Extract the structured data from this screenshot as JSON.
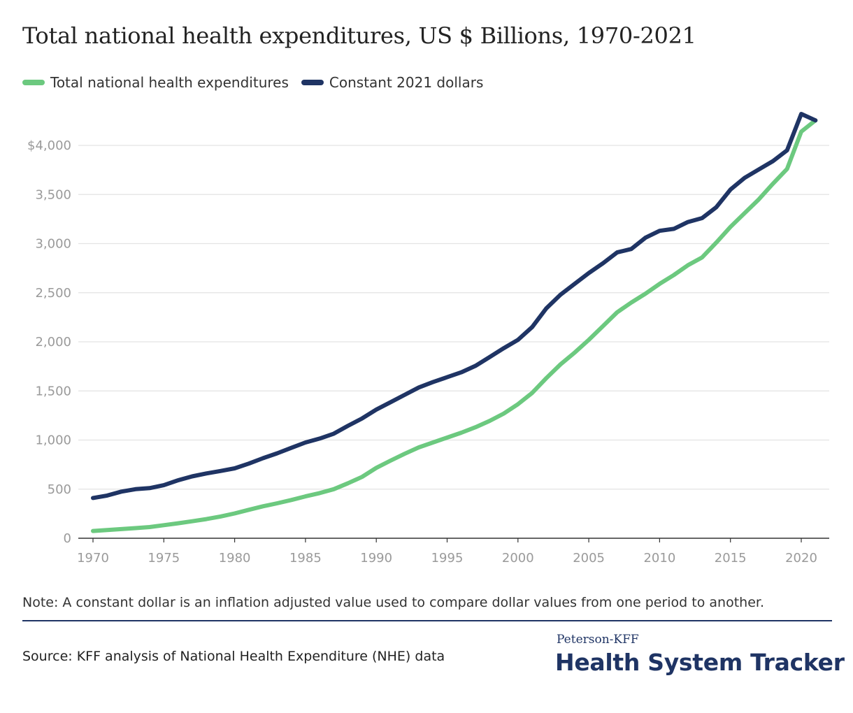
{
  "chart_data": {
    "type": "line",
    "title": "Total national health expenditures, US $ Billions, 1970-2021",
    "xlabel": "",
    "ylabel": "",
    "xlim": [
      1970,
      2021
    ],
    "ylim": [
      0,
      4400
    ],
    "x_ticks": [
      1970,
      1975,
      1980,
      1985,
      1990,
      1995,
      2000,
      2005,
      2010,
      2015,
      2020
    ],
    "x_tick_labels": [
      "1970",
      "1975",
      "1980",
      "1985",
      "1990",
      "1995",
      "2000",
      "2005",
      "2010",
      "2015",
      "2020"
    ],
    "y_ticks": [
      0,
      500,
      1000,
      1500,
      2000,
      2500,
      3000,
      3500,
      4000
    ],
    "y_tick_labels": [
      "0",
      "500",
      "1,000",
      "1,500",
      "2,000",
      "2,500",
      "3,000",
      "3,500",
      "$4,000"
    ],
    "grid": true,
    "legend_position": "top-left",
    "x": [
      1970,
      1971,
      1972,
      1973,
      1974,
      1975,
      1976,
      1977,
      1978,
      1979,
      1980,
      1981,
      1982,
      1983,
      1984,
      1985,
      1986,
      1987,
      1988,
      1989,
      1990,
      1991,
      1992,
      1993,
      1994,
      1995,
      1996,
      1997,
      1998,
      1999,
      2000,
      2001,
      2002,
      2003,
      2004,
      2005,
      2006,
      2007,
      2008,
      2009,
      2010,
      2011,
      2012,
      2013,
      2014,
      2015,
      2016,
      2017,
      2018,
      2019,
      2020,
      2021
    ],
    "series": [
      {
        "name": "Total national health expenditures",
        "color": "#6cc97f",
        "values": [
          74,
          83,
          93,
          103,
          114,
          133,
          152,
          173,
          195,
          221,
          253,
          290,
          325,
          356,
          389,
          426,
          460,
          500,
          560,
          625,
          717,
          790,
          860,
          925,
          975,
          1025,
          1075,
          1130,
          1195,
          1270,
          1365,
          1480,
          1630,
          1770,
          1890,
          2020,
          2160,
          2300,
          2400,
          2490,
          2590,
          2680,
          2780,
          2860,
          3010,
          3170,
          3310,
          3450,
          3610,
          3760,
          4140,
          4255
        ]
      },
      {
        "name": "Constant 2021 dollars",
        "color": "#1f3464",
        "values": [
          410,
          435,
          475,
          500,
          510,
          540,
          590,
          630,
          660,
          685,
          712,
          760,
          815,
          865,
          920,
          975,
          1015,
          1065,
          1145,
          1220,
          1310,
          1385,
          1460,
          1535,
          1590,
          1640,
          1690,
          1755,
          1845,
          1935,
          2020,
          2150,
          2340,
          2480,
          2590,
          2700,
          2800,
          2910,
          2945,
          3060,
          3130,
          3150,
          3220,
          3260,
          3370,
          3550,
          3670,
          3755,
          3840,
          3950,
          4320,
          4255
        ]
      }
    ]
  },
  "legend": {
    "items": [
      {
        "label": "Total national health expenditures",
        "color": "#6cc97f"
      },
      {
        "label": "Constant 2021 dollars",
        "color": "#1f3464"
      }
    ]
  },
  "footer": {
    "note": "Note: A constant dollar is an inflation adjusted value used to compare dollar values from one period to another.",
    "source": "Source: KFF analysis of National Health Expenditure (NHE) data",
    "brand_small": "Peterson-KFF",
    "brand_big": "Health System Tracker"
  }
}
